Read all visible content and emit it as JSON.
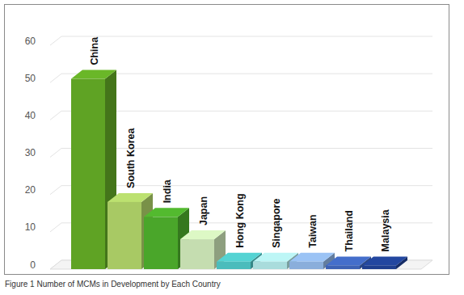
{
  "chart_data": {
    "type": "bar",
    "title": "Figure 1 Number of MCMs in Development by Each Country",
    "categories": [
      "China",
      "South Korea",
      "India",
      "Japan",
      "Hong Kong",
      "Singapore",
      "Taiwan",
      "Thailand",
      "Malaysia"
    ],
    "values": [
      51,
      18,
      14,
      8,
      2,
      2,
      2,
      1,
      1
    ],
    "colors": [
      "#5fa324",
      "#a8c964",
      "#4aa62a",
      "#c5ddb0",
      "#4bbcbc",
      "#a9dcdc",
      "#8aaedb",
      "#3d62b5",
      "#1f3f8f"
    ],
    "ylim": [
      0,
      60
    ],
    "yticks": [
      0,
      10,
      20,
      30,
      40,
      50,
      60
    ],
    "grid": true
  }
}
